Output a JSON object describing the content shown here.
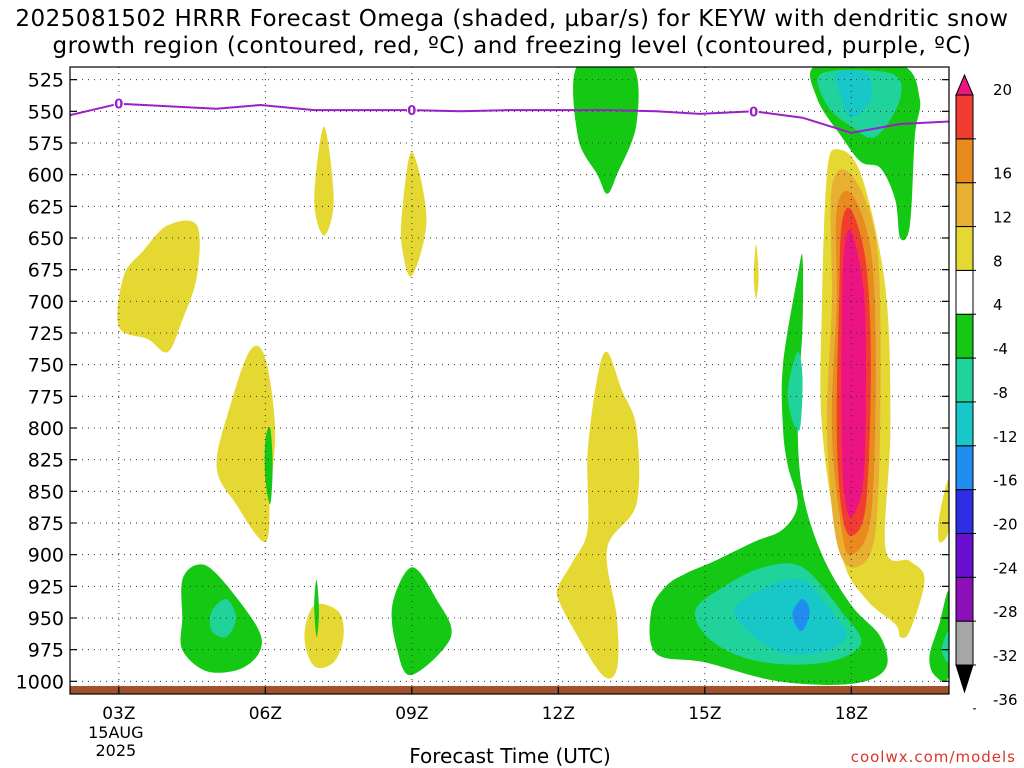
{
  "title": {
    "line1": "2025081502 HRRR Forecast Omega (shaded, µbar/s) for KEYW with dendritic snow",
    "line2": "growth region (contoured, red, ºC) and freezing level (contoured, purple, ºC)"
  },
  "credit": "coolwx.com/models",
  "colors": {
    "freezing_line": "#9b1fc8",
    "ground": "#a0522d",
    "scale": [
      "#000000",
      "#a6a6a6",
      "#8c10b8",
      "#6a0fcf",
      "#2e2ee6",
      "#1f8ef0",
      "#18c8c8",
      "#1fd39a",
      "#14c814",
      "#ffffff",
      "#e6d832",
      "#e8b032",
      "#e88a1e",
      "#f23c32",
      "#ec1482"
    ]
  },
  "chart_data": {
    "type": "heatmap",
    "xlabel": "Forecast Time (UTC)",
    "ylabel": "",
    "x_axis": {
      "range_hours": [
        2,
        20
      ],
      "ticks": [
        {
          "hour": 3,
          "label": "03Z",
          "sub": [
            "15AUG",
            "2025"
          ]
        },
        {
          "hour": 6,
          "label": "06Z",
          "sub": []
        },
        {
          "hour": 9,
          "label": "09Z",
          "sub": []
        },
        {
          "hour": 12,
          "label": "12Z",
          "sub": []
        },
        {
          "hour": 15,
          "label": "15Z",
          "sub": []
        },
        {
          "hour": 18,
          "label": "18Z",
          "sub": []
        }
      ]
    },
    "y_axis": {
      "unit": "hPa",
      "inverted": true,
      "range": [
        1010,
        515
      ],
      "ticks": [
        525,
        550,
        575,
        600,
        625,
        650,
        675,
        700,
        725,
        750,
        775,
        800,
        825,
        850,
        875,
        900,
        925,
        950,
        975,
        1000
      ]
    },
    "grid": true,
    "colorbar": {
      "labels": [
        20,
        16,
        12,
        8,
        4,
        -4,
        -8,
        -12,
        -16,
        -20,
        -24,
        -28,
        -32,
        -36
      ],
      "position": "right"
    },
    "freezing_level": {
      "label": "0",
      "points": [
        [
          2.0,
          553
        ],
        [
          3.0,
          544
        ],
        [
          4.0,
          546
        ],
        [
          5.0,
          548
        ],
        [
          5.9,
          545
        ],
        [
          7.0,
          549
        ],
        [
          8.0,
          549
        ],
        [
          9.0,
          549
        ],
        [
          10.0,
          550
        ],
        [
          11.0,
          549
        ],
        [
          12.0,
          549
        ],
        [
          13.0,
          549
        ],
        [
          14.0,
          550
        ],
        [
          14.9,
          552
        ],
        [
          16.0,
          550
        ],
        [
          17.0,
          555
        ],
        [
          18.0,
          567
        ],
        [
          19.0,
          560
        ],
        [
          20.0,
          558
        ]
      ],
      "label_hours": [
        3.0,
        9.0,
        16.0
      ]
    },
    "omega_regions": [
      {
        "bin": 4,
        "points": [
          [
            3.0,
            720
          ],
          [
            3.1,
            680
          ],
          [
            3.5,
            660
          ],
          [
            4.0,
            640
          ],
          [
            4.6,
            640
          ],
          [
            4.6,
            680
          ],
          [
            4.3,
            715
          ],
          [
            4.0,
            740
          ],
          [
            3.6,
            730
          ]
        ]
      },
      {
        "bin": 4,
        "points": [
          [
            7.0,
            620
          ],
          [
            7.2,
            562
          ],
          [
            7.4,
            620
          ],
          [
            7.2,
            648
          ]
        ]
      },
      {
        "bin": 4,
        "points": [
          [
            8.8,
            630
          ],
          [
            9.0,
            582
          ],
          [
            9.3,
            635
          ],
          [
            9.0,
            680
          ],
          [
            8.8,
            658
          ]
        ]
      },
      {
        "bin": 4,
        "points": [
          [
            5.0,
            830
          ],
          [
            5.3,
            780
          ],
          [
            5.7,
            738
          ],
          [
            6.0,
            745
          ],
          [
            6.2,
            800
          ],
          [
            6.1,
            850
          ],
          [
            6.0,
            890
          ],
          [
            5.4,
            860
          ]
        ]
      },
      {
        "bin": 4,
        "points": [
          [
            7.0,
            940
          ],
          [
            7.5,
            945
          ],
          [
            7.6,
            965
          ],
          [
            7.4,
            985
          ],
          [
            7.0,
            988
          ],
          [
            6.8,
            965
          ]
        ]
      },
      {
        "bin": 4,
        "points": [
          [
            12.0,
            925
          ],
          [
            12.3,
            905
          ],
          [
            12.6,
            880
          ],
          [
            12.6,
            820
          ],
          [
            12.8,
            760
          ],
          [
            13.0,
            740
          ],
          [
            13.3,
            770
          ],
          [
            13.6,
            800
          ],
          [
            13.6,
            860
          ],
          [
            13.0,
            895
          ],
          [
            13.2,
            950
          ],
          [
            13.2,
            990
          ],
          [
            12.9,
            995
          ],
          [
            12.3,
            958
          ],
          [
            12.0,
            935
          ]
        ]
      },
      {
        "bin": 4,
        "points": [
          [
            16.0,
            680
          ],
          [
            16.05,
            655
          ],
          [
            16.1,
            680
          ],
          [
            16.05,
            698
          ]
        ]
      },
      {
        "bin": 4,
        "points": [
          [
            17.5,
            600
          ],
          [
            17.7,
            580
          ],
          [
            18.2,
            600
          ],
          [
            18.7,
            690
          ],
          [
            18.8,
            800
          ],
          [
            18.7,
            895
          ],
          [
            19.2,
            905
          ],
          [
            19.5,
            920
          ],
          [
            19.2,
            960
          ],
          [
            19.0,
            965
          ],
          [
            18.9,
            955
          ],
          [
            18.3,
            935
          ],
          [
            17.8,
            900
          ],
          [
            17.4,
            800
          ],
          [
            17.4,
            700
          ]
        ]
      },
      {
        "bin": 4,
        "points": [
          [
            19.8,
            870
          ],
          [
            20.0,
            840
          ],
          [
            20.0,
            880
          ],
          [
            19.8,
            890
          ]
        ]
      },
      {
        "bin": 8,
        "points": [
          [
            17.6,
            610
          ],
          [
            18.0,
            600
          ],
          [
            18.5,
            650
          ],
          [
            18.6,
            750
          ],
          [
            18.5,
            880
          ],
          [
            18.1,
            910
          ],
          [
            17.7,
            890
          ],
          [
            17.5,
            800
          ],
          [
            17.6,
            700
          ]
        ]
      },
      {
        "bin": 12,
        "points": [
          [
            17.7,
            628
          ],
          [
            18.0,
            615
          ],
          [
            18.4,
            660
          ],
          [
            18.5,
            750
          ],
          [
            18.4,
            870
          ],
          [
            18.0,
            900
          ],
          [
            17.8,
            880
          ],
          [
            17.6,
            800
          ],
          [
            17.7,
            700
          ]
        ]
      },
      {
        "bin": 16,
        "points": [
          [
            17.8,
            640
          ],
          [
            18.0,
            628
          ],
          [
            18.3,
            670
          ],
          [
            18.4,
            750
          ],
          [
            18.3,
            860
          ],
          [
            18.0,
            885
          ],
          [
            17.8,
            865
          ],
          [
            17.7,
            800
          ],
          [
            17.75,
            700
          ]
        ]
      },
      {
        "bin": 20,
        "points": [
          [
            17.85,
            660
          ],
          [
            18.0,
            645
          ],
          [
            18.25,
            690
          ],
          [
            18.3,
            750
          ],
          [
            18.25,
            840
          ],
          [
            18.0,
            870
          ],
          [
            17.85,
            850
          ],
          [
            17.8,
            800
          ],
          [
            17.8,
            720
          ]
        ]
      },
      {
        "bin": -8,
        "points": [
          [
            12.4,
            513
          ],
          [
            13.5,
            513
          ],
          [
            13.6,
            560
          ],
          [
            13.2,
            600
          ],
          [
            13.0,
            615
          ],
          [
            12.8,
            600
          ],
          [
            12.4,
            570
          ]
        ]
      },
      {
        "bin": -8,
        "points": [
          [
            17.3,
            513
          ],
          [
            19.0,
            513
          ],
          [
            19.4,
            540
          ],
          [
            19.3,
            570
          ],
          [
            19.2,
            640
          ],
          [
            19.0,
            650
          ],
          [
            18.9,
            620
          ],
          [
            18.6,
            595
          ],
          [
            18.2,
            590
          ],
          [
            17.8,
            570
          ],
          [
            17.3,
            540
          ]
        ]
      },
      {
        "bin": -8,
        "points": [
          [
            6.0,
            810
          ],
          [
            6.1,
            800
          ],
          [
            6.15,
            830
          ],
          [
            6.1,
            860
          ],
          [
            6.0,
            840
          ]
        ]
      },
      {
        "bin": -8,
        "points": [
          [
            16.6,
            750
          ],
          [
            16.9,
            680
          ],
          [
            17.0,
            665
          ],
          [
            17.0,
            720
          ],
          [
            16.9,
            790
          ],
          [
            17.0,
            850
          ],
          [
            17.4,
            900
          ],
          [
            18.0,
            940
          ],
          [
            18.6,
            965
          ],
          [
            18.7,
            990
          ],
          [
            18.0,
            1002
          ],
          [
            16.5,
            1000
          ],
          [
            15.0,
            985
          ],
          [
            14.0,
            978
          ],
          [
            13.9,
            945
          ],
          [
            14.2,
            925
          ],
          [
            14.6,
            915
          ],
          [
            15.2,
            905
          ],
          [
            16.0,
            890
          ],
          [
            16.6,
            880
          ],
          [
            16.9,
            860
          ],
          [
            16.7,
            830
          ],
          [
            16.6,
            800
          ]
        ]
      },
      {
        "bin": -8,
        "points": [
          [
            4.3,
            920
          ],
          [
            4.6,
            908
          ],
          [
            5.0,
            915
          ],
          [
            5.8,
            955
          ],
          [
            5.9,
            975
          ],
          [
            5.5,
            990
          ],
          [
            4.8,
            992
          ],
          [
            4.3,
            975
          ],
          [
            4.3,
            950
          ]
        ]
      },
      {
        "bin": -8,
        "points": [
          [
            7.0,
            940
          ],
          [
            7.05,
            920
          ],
          [
            7.1,
            945
          ],
          [
            7.05,
            965
          ]
        ]
      },
      {
        "bin": -8,
        "points": [
          [
            8.6,
            940
          ],
          [
            9.0,
            910
          ],
          [
            9.5,
            935
          ],
          [
            9.8,
            965
          ],
          [
            9.0,
            995
          ],
          [
            8.7,
            975
          ]
        ]
      },
      {
        "bin": -8,
        "points": [
          [
            19.6,
            980
          ],
          [
            19.8,
            955
          ],
          [
            20.0,
            930
          ],
          [
            20.0,
            995
          ],
          [
            19.7,
            995
          ]
        ]
      },
      {
        "bin": -12,
        "points": [
          [
            17.4,
            520
          ],
          [
            18.8,
            520
          ],
          [
            19.0,
            540
          ],
          [
            18.5,
            570
          ],
          [
            18.0,
            562
          ],
          [
            17.5,
            545
          ]
        ]
      },
      {
        "bin": -12,
        "points": [
          [
            16.7,
            770
          ],
          [
            16.9,
            740
          ],
          [
            17.0,
            760
          ],
          [
            16.95,
            800
          ],
          [
            16.8,
            795
          ]
        ]
      },
      {
        "bin": -12,
        "points": [
          [
            14.8,
            945
          ],
          [
            15.4,
            925
          ],
          [
            16.2,
            910
          ],
          [
            17.0,
            910
          ],
          [
            17.8,
            945
          ],
          [
            18.2,
            970
          ],
          [
            17.5,
            985
          ],
          [
            16.2,
            985
          ],
          [
            15.2,
            970
          ]
        ]
      },
      {
        "bin": -12,
        "points": [
          [
            4.9,
            945
          ],
          [
            5.2,
            935
          ],
          [
            5.4,
            950
          ],
          [
            5.2,
            965
          ],
          [
            4.9,
            960
          ]
        ]
      },
      {
        "bin": -12,
        "points": [
          [
            19.85,
            975
          ],
          [
            20.0,
            960
          ],
          [
            20.0,
            985
          ]
        ]
      },
      {
        "bin": -16,
        "points": [
          [
            17.7,
            520
          ],
          [
            18.3,
            520
          ],
          [
            18.4,
            540
          ],
          [
            18.0,
            555
          ],
          [
            17.8,
            540
          ]
        ]
      },
      {
        "bin": -16,
        "points": [
          [
            15.6,
            945
          ],
          [
            16.3,
            925
          ],
          [
            17.0,
            920
          ],
          [
            17.6,
            945
          ],
          [
            17.9,
            965
          ],
          [
            17.3,
            978
          ],
          [
            16.4,
            975
          ]
        ]
      },
      {
        "bin": -20,
        "points": [
          [
            16.8,
            945
          ],
          [
            17.0,
            935
          ],
          [
            17.15,
            945
          ],
          [
            17.0,
            960
          ],
          [
            16.85,
            955
          ]
        ]
      }
    ]
  }
}
